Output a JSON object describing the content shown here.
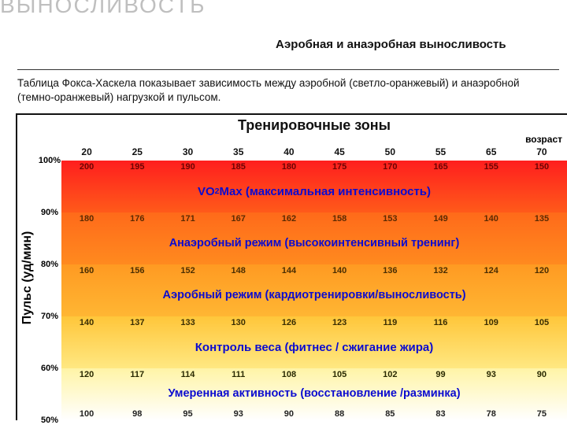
{
  "page": {
    "title": "ВЫНОСЛИВОСТЬ",
    "subtitle": "Аэробная и анаэробная выносливость",
    "description": "Таблица Фокса-Хаскела показывает зависимость между аэробной (светло-оранжевый) и анаэробной (темно-оранжевый) нагрузкой и пульсом."
  },
  "chart": {
    "title": "Тренировочные зоны",
    "age_label": "возраст",
    "y_label": "Пульс (уд/мин)",
    "ages": [
      "20",
      "25",
      "30",
      "35",
      "40",
      "45",
      "50",
      "55",
      "65",
      "70"
    ],
    "pct_ticks": [
      {
        "label": "100%",
        "pos": 0
      },
      {
        "label": "90%",
        "pos": 20
      },
      {
        "label": "80%",
        "pos": 40
      },
      {
        "label": "70%",
        "pos": 60
      },
      {
        "label": "60%",
        "pos": 80
      },
      {
        "label": "50%",
        "pos": 100
      }
    ],
    "zones": [
      {
        "label_html": "VO<sub>2</sub> Max (максимальная интенсивность)",
        "label_color": "#0b0bd0",
        "label_fontsize": "15px",
        "data_color": "#6b0404",
        "top_values": [
          "200",
          "195",
          "190",
          "185",
          "180",
          "175",
          "170",
          "165",
          "155",
          "150"
        ],
        "gradient_from": "#ff1e1e",
        "gradient_to": "#ff5a1a"
      },
      {
        "label_html": "Анаэробный режим (высокоинтенсивный тренинг)",
        "label_color": "#0b0bd0",
        "label_fontsize": "14.5px",
        "data_color": "#5a2a02",
        "top_values": [
          "180",
          "176",
          "171",
          "167",
          "162",
          "158",
          "153",
          "149",
          "140",
          "135"
        ],
        "gradient_from": "#ff6a1a",
        "gradient_to": "#ff8a1f"
      },
      {
        "label_html": "Аэробный режим (кардиотренировки/выносливость)",
        "label_color": "#0b0bd0",
        "label_fontsize": "14.5px",
        "data_color": "#4a2e02",
        "top_values": [
          "160",
          "156",
          "152",
          "148",
          "144",
          "140",
          "136",
          "132",
          "124",
          "120"
        ],
        "gradient_from": "#ff9a22",
        "gradient_to": "#ffb633"
      },
      {
        "label_html": "Контроль веса (фитнес / сжигание жира)",
        "label_color": "#0b0bd0",
        "label_fontsize": "15px",
        "data_color": "#3a2e02",
        "top_values": [
          "140",
          "137",
          "133",
          "130",
          "126",
          "123",
          "119",
          "116",
          "109",
          "105"
        ],
        "gradient_from": "#ffc63a",
        "gradient_to": "#ffe882"
      },
      {
        "label_html": "Умеренная активность (восстановление /разминка)",
        "label_color": "#0b0bd0",
        "label_fontsize": "14.5px",
        "data_color": "#2a2a02",
        "top_values": [
          "120",
          "117",
          "114",
          "111",
          "108",
          "105",
          "102",
          "99",
          "93",
          "90"
        ],
        "gradient_from": "#fff4a6",
        "gradient_to": "#ffffff"
      }
    ],
    "bottom_values": [
      "100",
      "98",
      "95",
      "93",
      "90",
      "88",
      "85",
      "83",
      "78",
      "75"
    ]
  }
}
